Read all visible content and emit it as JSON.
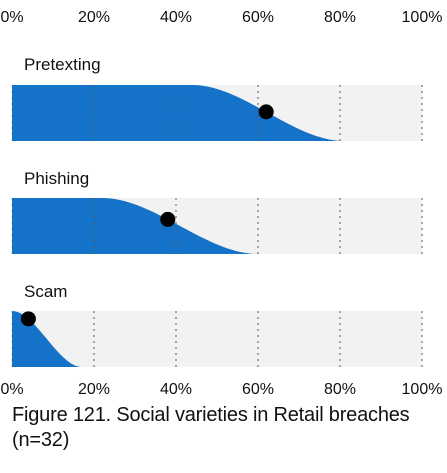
{
  "caption": "Figure 121. Social varieties in Retail breaches (n=32)",
  "colors": {
    "fill": "#1472c9",
    "track": "#f2f2f2",
    "marker": "#000000",
    "gridline": "#555555"
  },
  "chart_data": {
    "type": "area",
    "title": "Figure 121. Social varieties in Retail breaches (n=32)",
    "xlim": [
      0,
      100
    ],
    "x_ticks": [
      "0%",
      "20%",
      "40%",
      "60%",
      "80%",
      "100%"
    ],
    "x_tick_values": [
      0,
      20,
      40,
      60,
      80,
      100
    ],
    "grid": true,
    "series": [
      {
        "name": "Pretexting",
        "point": 62,
        "plateau_end": 44,
        "zero_at": 81
      },
      {
        "name": "Phishing",
        "point": 38,
        "plateau_end": 22,
        "zero_at": 60
      },
      {
        "name": "Scam",
        "point": 4,
        "plateau_end": 0,
        "zero_at": 17
      }
    ]
  }
}
